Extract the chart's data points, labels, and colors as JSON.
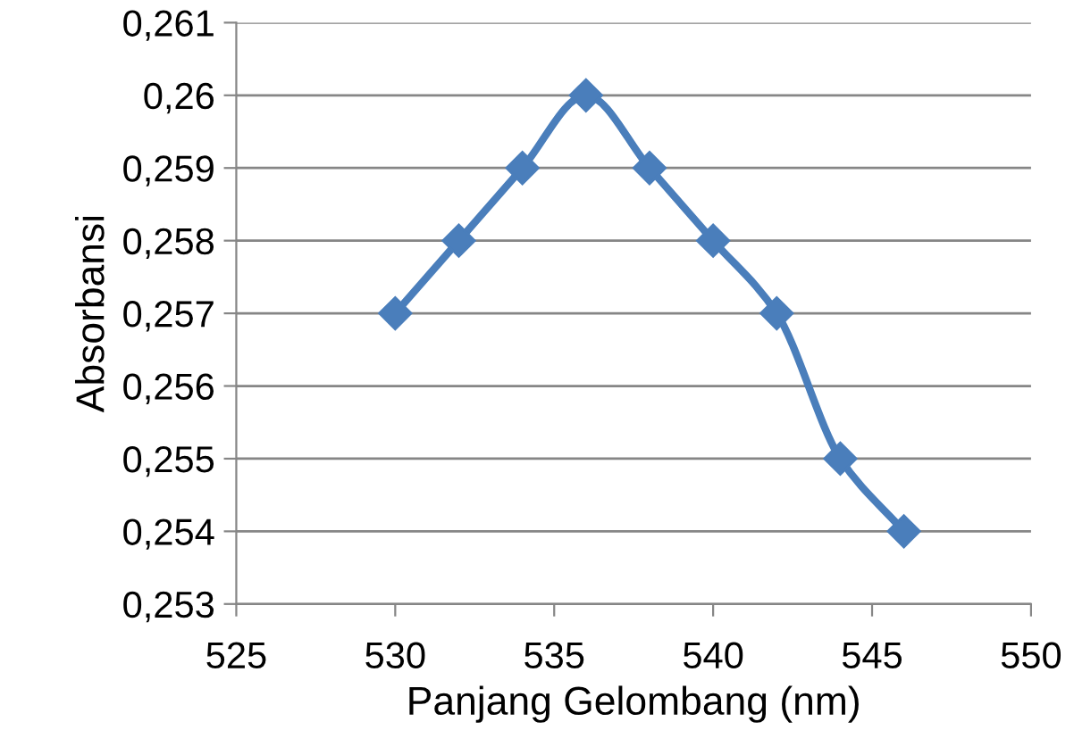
{
  "chart_data": {
    "type": "line",
    "xlabel": "Panjang Gelombang (nm)",
    "ylabel": "Absorbansi",
    "x": [
      530,
      532,
      534,
      536,
      538,
      540,
      542,
      544,
      546
    ],
    "series": [
      {
        "color": "#4a7ebb",
        "values": [
          0.257,
          0.258,
          0.259,
          0.26,
          0.259,
          0.258,
          0.257,
          0.255,
          0.254
        ]
      }
    ],
    "xlim": [
      525,
      550
    ],
    "xticks": [
      525,
      530,
      535,
      540,
      545,
      550
    ],
    "ylim": [
      0.253,
      0.261
    ],
    "yticks": [
      {
        "value": 0.253,
        "label": "0,253"
      },
      {
        "value": 0.254,
        "label": "0,254"
      },
      {
        "value": 0.255,
        "label": "0,255"
      },
      {
        "value": 0.256,
        "label": "0,256"
      },
      {
        "value": 0.257,
        "label": "0,257"
      },
      {
        "value": 0.258,
        "label": "0,258"
      },
      {
        "value": 0.259,
        "label": "0,259"
      },
      {
        "value": 0.26,
        "label": "0,26"
      },
      {
        "value": 0.261,
        "label": "0,261"
      }
    ],
    "grid": "y",
    "marker": "diamond",
    "line_style": "solid",
    "legend": false
  }
}
